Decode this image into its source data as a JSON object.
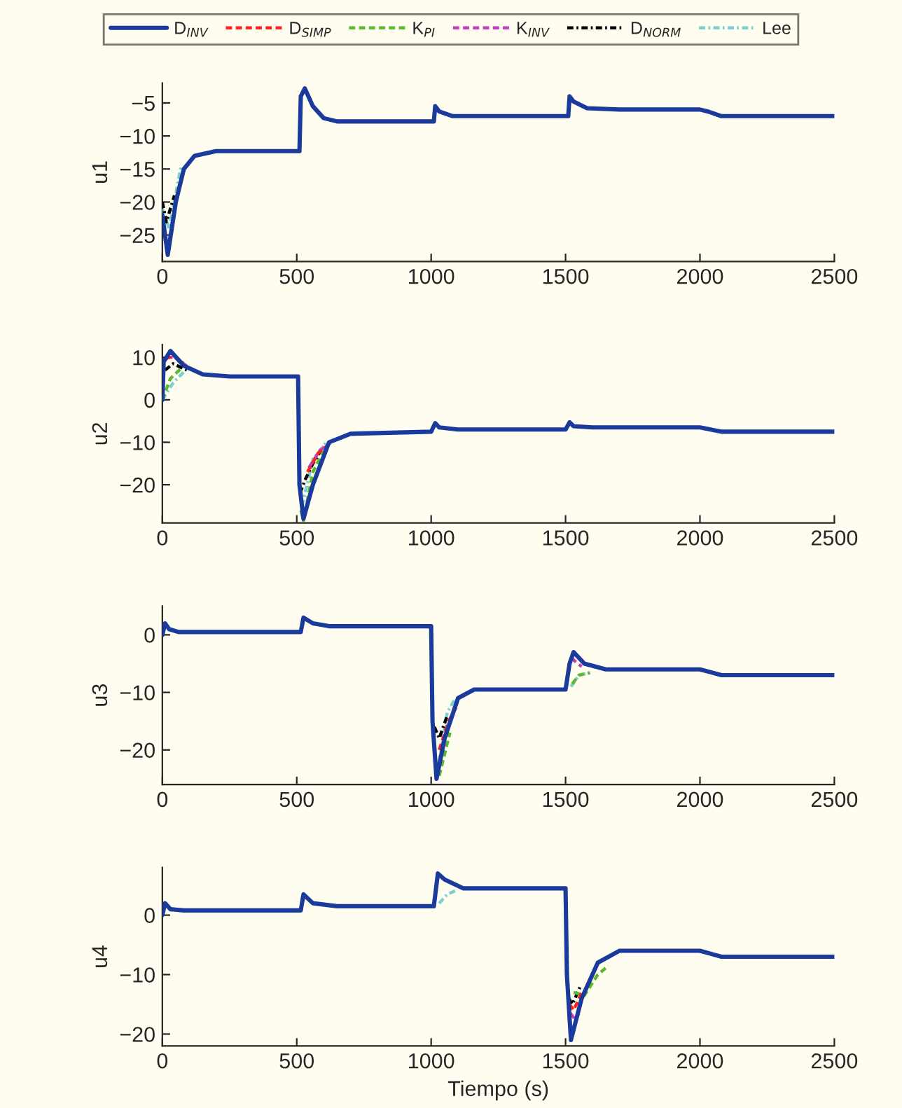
{
  "chart_data": [
    {
      "type": "line",
      "ylabel": "u1",
      "xlim": [
        0,
        2500
      ],
      "xticks": [
        0,
        500,
        1000,
        1500,
        2000,
        2500
      ],
      "ylim": [
        -29,
        -2
      ],
      "yticks": [
        -5,
        -10,
        -15,
        -20,
        -25
      ],
      "grid": false,
      "series": [
        {
          "color": "#1a3a9c",
          "line_style": "solid",
          "x": [
            0,
            20,
            50,
            80,
            120,
            200,
            510,
            515,
            530,
            560,
            600,
            650,
            1010,
            1015,
            1030,
            1080,
            1510,
            1515,
            1530,
            1580,
            1700,
            2000,
            2030,
            2080,
            2500
          ],
          "values": [
            -22,
            -28,
            -20,
            -15,
            -13,
            -12.3,
            -12.3,
            -4,
            -2.8,
            -5.5,
            -7.3,
            -7.8,
            -7.8,
            -5.5,
            -6.3,
            -7,
            -7,
            -4,
            -4.8,
            -5.8,
            -6,
            -6,
            -6.3,
            -7,
            -7
          ]
        },
        {
          "color": "#000000",
          "line_style": "dashdot",
          "x": [
            0,
            15,
            45
          ],
          "values": [
            -20,
            -23,
            -19
          ]
        },
        {
          "color": "#7ccfcf",
          "line_style": "dashdot",
          "x": [
            0,
            25,
            70
          ],
          "values": [
            -21,
            -24,
            -14.5
          ]
        }
      ]
    },
    {
      "type": "line",
      "ylabel": "u2",
      "xlim": [
        0,
        2500
      ],
      "xticks": [
        0,
        500,
        1000,
        1500,
        2000,
        2500
      ],
      "ylim": [
        -29,
        13
      ],
      "yticks": [
        10,
        0,
        -10,
        -20
      ],
      "legend": "top",
      "grid": false,
      "series": [
        {
          "name": "D$_{INV}$",
          "color": "#1a3a9c",
          "line_style": "solid",
          "x": [
            0,
            5,
            30,
            80,
            150,
            250,
            505,
            510,
            525,
            560,
            620,
            700,
            1000,
            1015,
            1030,
            1100,
            1500,
            1515,
            1530,
            1600,
            2000,
            2080,
            2500
          ],
          "values": [
            0,
            9,
            11.5,
            8,
            6,
            5.5,
            5.5,
            -20,
            -28,
            -20,
            -10,
            -8,
            -7.5,
            -5.5,
            -6.5,
            -7,
            -7,
            -5.3,
            -6.2,
            -6.5,
            -6.5,
            -7.5,
            -7.5
          ]
        },
        {
          "name": "D$_{SIMP}$",
          "color": "#ff2020",
          "line_style": "dashed",
          "x": [
            10,
            40,
            80,
            300,
            540,
            580,
            620
          ],
          "values": [
            9.5,
            10.5,
            8.5,
            null,
            -17,
            -12.5,
            -10.5
          ]
        },
        {
          "name": "K$_{PI}$",
          "color": "#5cb82c",
          "line_style": "dashed",
          "x": [
            0,
            30,
            80,
            300,
            515,
            525,
            560,
            600
          ],
          "values": [
            0,
            5,
            8,
            null,
            -26,
            -28.5,
            -17,
            -12
          ]
        },
        {
          "name": "K$_{INV}$",
          "color": "#c040c0",
          "line_style": "dashed",
          "x": [
            15,
            45,
            90,
            300,
            545,
            585,
            625
          ],
          "values": [
            10,
            10,
            8,
            null,
            -16,
            -12,
            -10.2
          ]
        },
        {
          "name": "D$_{NORM}$",
          "color": "#000000",
          "line_style": "dashdot",
          "x": [
            10,
            40,
            90,
            300,
            512,
            530,
            560,
            600
          ],
          "values": [
            7,
            8.5,
            7,
            null,
            -22,
            -19,
            -15,
            -11
          ]
        },
        {
          "name": "Lee",
          "color": "#7ccfcf",
          "line_style": "dashdot",
          "x": [
            0,
            40,
            90,
            300,
            520,
            560,
            610
          ],
          "values": [
            0,
            4,
            7.2,
            null,
            -25,
            -14,
            -10
          ]
        }
      ]
    },
    {
      "type": "line",
      "ylabel": "u3",
      "xlim": [
        0,
        2500
      ],
      "xticks": [
        0,
        500,
        1000,
        1500,
        2000,
        2500
      ],
      "ylim": [
        -26,
        5
      ],
      "yticks": [
        0,
        -10,
        -20
      ],
      "grid": false,
      "series": [
        {
          "color": "#1a3a9c",
          "line_style": "solid",
          "x": [
            0,
            10,
            25,
            60,
            500,
            515,
            525,
            560,
            620,
            1000,
            1005,
            1020,
            1050,
            1100,
            1160,
            1500,
            1515,
            1530,
            1570,
            1650,
            2000,
            2080,
            2500
          ],
          "values": [
            0,
            2,
            1,
            0.5,
            0.5,
            0.5,
            3,
            2,
            1.5,
            1.5,
            -15,
            -25,
            -18,
            -11,
            -9.5,
            -9.5,
            -5,
            -3,
            -5,
            -6,
            -6,
            -7,
            -7
          ]
        },
        {
          "color": "#ff2020",
          "line_style": "dashed",
          "x": [
            1030,
            1065,
            1100
          ],
          "values": [
            -20,
            -15,
            -12
          ]
        },
        {
          "color": "#5cb82c",
          "line_style": "dashed",
          "x": [
            1030,
            1070,
            1300,
            1525,
            1550,
            1590
          ],
          "values": [
            -24.5,
            -17,
            null,
            -8.5,
            -7,
            -6.6
          ]
        },
        {
          "color": "#c040c0",
          "line_style": "dashed",
          "x": [
            1522,
            1540,
            1560
          ],
          "values": [
            -4,
            -4.8,
            -5.5
          ]
        },
        {
          "color": "#000000",
          "line_style": "dashdot",
          "x": [
            1012,
            1030,
            1060
          ],
          "values": [
            -16,
            -18,
            -14
          ]
        },
        {
          "color": "#7ccfcf",
          "line_style": "dashdot",
          "x": [
            1030,
            1060,
            1090,
            1300,
            1520,
            1550,
            1600
          ],
          "values": [
            -22,
            -13.5,
            -11,
            null,
            -9,
            -7,
            -6.5
          ]
        }
      ]
    },
    {
      "type": "line",
      "xlabel": "Tiempo (s)",
      "ylabel": "u4",
      "xlim": [
        0,
        2500
      ],
      "xticks": [
        0,
        500,
        1000,
        1500,
        2000,
        2500
      ],
      "ylim": [
        -22,
        8
      ],
      "yticks": [
        0,
        -10,
        -20
      ],
      "grid": false,
      "series": [
        {
          "color": "#1a3a9c",
          "line_style": "solid",
          "x": [
            0,
            10,
            30,
            80,
            500,
            515,
            525,
            560,
            650,
            1000,
            1010,
            1025,
            1050,
            1120,
            1500,
            1505,
            1520,
            1560,
            1620,
            1700,
            2000,
            2080,
            2500
          ],
          "values": [
            0,
            2,
            1,
            0.8,
            0.8,
            0.8,
            3.5,
            2,
            1.5,
            1.5,
            1.5,
            7,
            6,
            4.5,
            4.5,
            -10,
            -21,
            -14,
            -8,
            -6,
            -6,
            -7,
            -7
          ]
        },
        {
          "color": "#ff2020",
          "line_style": "dashed",
          "x": [
            1515,
            1530,
            1560
          ],
          "values": [
            -15,
            -16,
            -13
          ]
        },
        {
          "color": "#5cb82c",
          "line_style": "dashed",
          "x": [
            1530,
            1570,
            1620,
            1660
          ],
          "values": [
            -13,
            -13.5,
            -10,
            -8.5
          ]
        },
        {
          "color": "#c040c0",
          "line_style": "dashed",
          "x": [
            1518,
            1535,
            1550
          ],
          "values": [
            -16.5,
            -17.5,
            -16.5
          ]
        },
        {
          "color": "#000000",
          "line_style": "dashdot",
          "x": [
            1512,
            1525,
            1555
          ],
          "values": [
            -14,
            -15,
            -12
          ]
        },
        {
          "color": "#7ccfcf",
          "line_style": "dashdot",
          "x": [
            1030,
            1060,
            1100
          ],
          "values": [
            2,
            3.5,
            4.3
          ]
        }
      ]
    }
  ]
}
